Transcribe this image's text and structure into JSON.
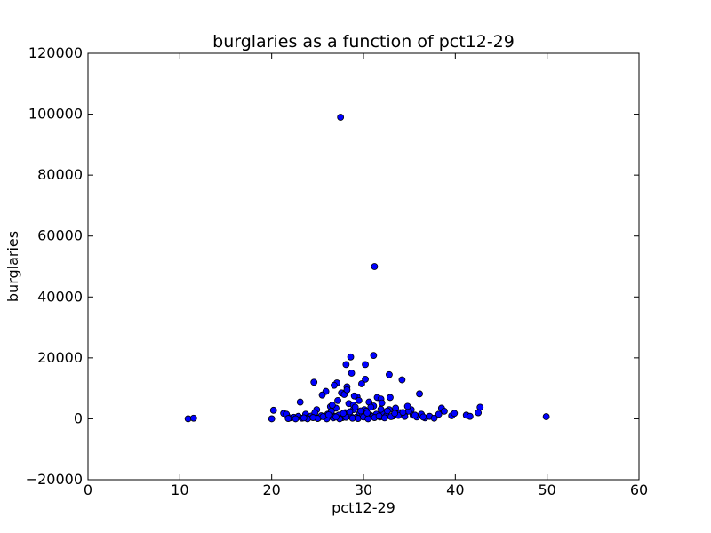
{
  "chart_data": {
    "type": "scatter",
    "title": "burglaries as a function of pct12-29",
    "xlabel": "pct12-29",
    "ylabel": "burglaries",
    "xlim": [
      0,
      60
    ],
    "ylim": [
      -20000,
      120000
    ],
    "xticks": [
      "0",
      "10",
      "20",
      "30",
      "40",
      "50",
      "60"
    ],
    "yticks": [
      "−20000",
      "0",
      "20000",
      "40000",
      "60000",
      "80000",
      "100000",
      "120000"
    ],
    "grid": false,
    "legend": "none",
    "marker_color": "#0000ff",
    "x": [
      27.5,
      31.2,
      28.6,
      31.1,
      30.2,
      28.1,
      28.7,
      32.8,
      34.2,
      24.6,
      27.1,
      30.2,
      29.8,
      25.9,
      27.6,
      25.5,
      27.9,
      26.8,
      28.2,
      29.3,
      31.5,
      32.9,
      36.1,
      23.1,
      31.9,
      27.2,
      28.4,
      29.5,
      30.6,
      26.4,
      24.9,
      27.0,
      28.9,
      30.1,
      33.5,
      35.2,
      42.7,
      38.5,
      10.9,
      11.5,
      20.0,
      20.2,
      21.3,
      21.6,
      22.0,
      22.4,
      22.9,
      23.3,
      23.7,
      24.0,
      24.3,
      24.7,
      25.1,
      25.4,
      25.8,
      26.1,
      26.5,
      26.9,
      27.3,
      27.7,
      28.0,
      28.3,
      28.6,
      28.9,
      29.2,
      29.6,
      29.9,
      30.3,
      30.7,
      31.0,
      31.4,
      31.8,
      32.1,
      32.5,
      32.8,
      33.2,
      33.6,
      34.0,
      34.5,
      34.9,
      35.4,
      35.8,
      36.3,
      36.7,
      37.2,
      37.7,
      38.2,
      38.8,
      39.6,
      39.9,
      41.2,
      41.6,
      42.5,
      49.9,
      22.6,
      23.9,
      25.0,
      26.0,
      26.7,
      27.4,
      28.1,
      28.8,
      29.4,
      30.0,
      30.5,
      31.2,
      31.7,
      32.3,
      33.0,
      33.8,
      24.5,
      25.6,
      26.2,
      27.0,
      27.8,
      28.5,
      29.1,
      29.7,
      30.4,
      31.1,
      31.9,
      32.6,
      33.4,
      34.3,
      35.6,
      36.5,
      21.8,
      23.5,
      26.6,
      28.2,
      29.0,
      30.8,
      32.0,
      34.8
    ],
    "y": [
      99000,
      50000,
      20300,
      20800,
      17800,
      17800,
      15000,
      14500,
      12800,
      12000,
      11800,
      13000,
      11500,
      9000,
      8500,
      7800,
      8000,
      11000,
      10500,
      7200,
      7000,
      7000,
      8200,
      5500,
      6500,
      6000,
      5000,
      6000,
      5500,
      4000,
      3000,
      3500,
      4500,
      3000,
      3500,
      3000,
      3800,
      3500,
      0,
      200,
      0,
      2800,
      1800,
      1500,
      300,
      500,
      800,
      200,
      1500,
      400,
      900,
      2000,
      300,
      1000,
      600,
      1500,
      2500,
      800,
      1200,
      400,
      2000,
      1500,
      800,
      3000,
      500,
      2000,
      1000,
      2500,
      1200,
      800,
      1500,
      600,
      2000,
      1000,
      3000,
      900,
      1500,
      2000,
      800,
      2500,
      1200,
      600,
      1500,
      300,
      800,
      200,
      1500,
      2500,
      1000,
      1800,
      1200,
      800,
      2000,
      700,
      0,
      0,
      100,
      0,
      300,
      0,
      500,
      200,
      100,
      600,
      0,
      400,
      900,
      300,
      700,
      1100,
      400,
      700,
      1300,
      600,
      1800,
      2300,
      3800,
      2600,
      1900,
      4200,
      3100,
      2600,
      1800,
      2100,
      1200,
      600,
      100,
      300,
      4500,
      9500,
      7500,
      3800,
      5200,
      4100
    ]
  }
}
